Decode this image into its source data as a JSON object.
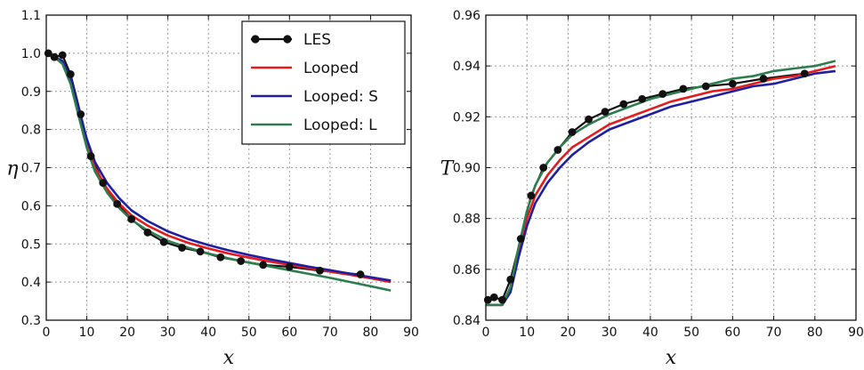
{
  "chart_data": [
    {
      "type": "line",
      "xlabel": "x",
      "ylabel": "η",
      "xlim": [
        0,
        90
      ],
      "ylim": [
        0.3,
        1.1
      ],
      "x_ticks": [
        0,
        10,
        20,
        30,
        40,
        50,
        60,
        70,
        80,
        90
      ],
      "x_tick_labels": [
        "0",
        "10",
        "20",
        "30",
        "40",
        "50",
        "60",
        "70",
        "80",
        "90"
      ],
      "y_ticks": [
        0.3,
        0.4,
        0.5,
        0.6,
        0.7,
        0.8,
        0.9,
        1.0,
        1.1
      ],
      "y_tick_labels": [
        "0.3",
        "0.4",
        "0.5",
        "0.6",
        "0.7",
        "0.8",
        "0.9",
        "1.0",
        "1.1"
      ],
      "grid": true,
      "legend_position": "top-right",
      "series": [
        {
          "name": "LES",
          "color": "#111111",
          "markers": true,
          "x": [
            0.5,
            2,
            4,
            6,
            8.5,
            11,
            14,
            17.5,
            21,
            25,
            29,
            33.5,
            38,
            43,
            48,
            53.5,
            60,
            67.5,
            77.5
          ],
          "y": [
            1.0,
            0.99,
            0.995,
            0.945,
            0.84,
            0.73,
            0.66,
            0.605,
            0.565,
            0.53,
            0.505,
            0.49,
            0.48,
            0.465,
            0.455,
            0.445,
            0.44,
            0.43,
            0.42
          ]
        },
        {
          "name": "Looped",
          "color": "#e41a1c",
          "markers": false,
          "x": [
            0,
            2,
            4,
            6,
            8,
            10,
            12,
            15,
            18,
            21,
            25,
            30,
            35,
            40,
            45,
            50,
            55,
            60,
            65,
            70,
            75,
            80,
            85
          ],
          "y": [
            1.0,
            0.99,
            0.975,
            0.925,
            0.84,
            0.76,
            0.7,
            0.645,
            0.605,
            0.575,
            0.548,
            0.522,
            0.503,
            0.488,
            0.475,
            0.464,
            0.454,
            0.445,
            0.436,
            0.427,
            0.419,
            0.41,
            0.4
          ]
        },
        {
          "name": "Looped: S",
          "color": "#1f1fa0",
          "markers": false,
          "x": [
            0,
            2,
            4,
            6,
            8,
            10,
            12,
            15,
            18,
            21,
            25,
            30,
            35,
            40,
            45,
            50,
            55,
            60,
            65,
            70,
            75,
            80,
            85
          ],
          "y": [
            1.0,
            0.99,
            0.98,
            0.935,
            0.855,
            0.775,
            0.715,
            0.66,
            0.62,
            0.588,
            0.56,
            0.533,
            0.513,
            0.497,
            0.483,
            0.471,
            0.46,
            0.45,
            0.44,
            0.431,
            0.422,
            0.413,
            0.404
          ]
        },
        {
          "name": "Looped: L",
          "color": "#2e7d4f",
          "markers": false,
          "x": [
            0,
            2,
            4,
            6,
            8,
            10,
            12,
            15,
            18,
            21,
            25,
            30,
            35,
            40,
            45,
            50,
            55,
            60,
            65,
            70,
            75,
            80,
            85
          ],
          "y": [
            1.0,
            0.99,
            0.972,
            0.92,
            0.835,
            0.752,
            0.69,
            0.635,
            0.594,
            0.563,
            0.535,
            0.508,
            0.49,
            0.475,
            0.462,
            0.451,
            0.441,
            0.431,
            0.421,
            0.411,
            0.4,
            0.389,
            0.378
          ]
        }
      ]
    },
    {
      "type": "line",
      "xlabel": "x",
      "ylabel": "T",
      "xlim": [
        0,
        90
      ],
      "ylim": [
        0.84,
        0.96
      ],
      "x_ticks": [
        0,
        10,
        20,
        30,
        40,
        50,
        60,
        70,
        80,
        90
      ],
      "x_tick_labels": [
        "0",
        "10",
        "20",
        "30",
        "40",
        "50",
        "60",
        "70",
        "80",
        "90"
      ],
      "y_ticks": [
        0.84,
        0.86,
        0.88,
        0.9,
        0.92,
        0.94,
        0.96
      ],
      "y_tick_labels": [
        "0.84",
        "0.86",
        "0.88",
        "0.90",
        "0.92",
        "0.94",
        "0.96"
      ],
      "grid": true,
      "series": [
        {
          "name": "LES",
          "color": "#111111",
          "markers": true,
          "x": [
            0.5,
            2,
            4,
            6,
            8.5,
            11,
            14,
            17.5,
            21,
            25,
            29,
            33.5,
            38,
            43,
            48,
            53.5,
            60,
            67.5,
            77.5
          ],
          "y": [
            0.848,
            0.849,
            0.848,
            0.856,
            0.872,
            0.889,
            0.9,
            0.907,
            0.914,
            0.919,
            0.922,
            0.925,
            0.927,
            0.929,
            0.931,
            0.932,
            0.933,
            0.935,
            0.937
          ]
        },
        {
          "name": "Looped",
          "color": "#e41a1c",
          "markers": false,
          "x": [
            0,
            2,
            4,
            6,
            8,
            10,
            12,
            15,
            18,
            21,
            25,
            30,
            35,
            40,
            45,
            50,
            55,
            60,
            65,
            70,
            75,
            80,
            85
          ],
          "y": [
            0.846,
            0.846,
            0.846,
            0.852,
            0.867,
            0.88,
            0.889,
            0.897,
            0.903,
            0.908,
            0.912,
            0.917,
            0.92,
            0.923,
            0.926,
            0.928,
            0.93,
            0.931,
            0.933,
            0.935,
            0.936,
            0.938,
            0.94
          ]
        },
        {
          "name": "Looped: S",
          "color": "#1f1fa0",
          "markers": false,
          "x": [
            0,
            2,
            4,
            6,
            8,
            10,
            12,
            15,
            18,
            21,
            25,
            30,
            35,
            40,
            45,
            50,
            55,
            60,
            65,
            70,
            75,
            80,
            85
          ],
          "y": [
            0.846,
            0.846,
            0.846,
            0.851,
            0.865,
            0.877,
            0.886,
            0.894,
            0.9,
            0.905,
            0.91,
            0.915,
            0.918,
            0.921,
            0.924,
            0.926,
            0.928,
            0.93,
            0.932,
            0.933,
            0.935,
            0.937,
            0.938
          ]
        },
        {
          "name": "Looped: L",
          "color": "#2e7d4f",
          "markers": false,
          "x": [
            0,
            2,
            4,
            6,
            8,
            10,
            12,
            15,
            18,
            21,
            25,
            30,
            35,
            40,
            45,
            50,
            55,
            60,
            65,
            70,
            75,
            80,
            85
          ],
          "y": [
            0.846,
            0.846,
            0.846,
            0.853,
            0.869,
            0.883,
            0.893,
            0.902,
            0.908,
            0.913,
            0.917,
            0.921,
            0.924,
            0.927,
            0.929,
            0.931,
            0.933,
            0.935,
            0.936,
            0.938,
            0.939,
            0.94,
            0.942
          ]
        }
      ]
    }
  ]
}
